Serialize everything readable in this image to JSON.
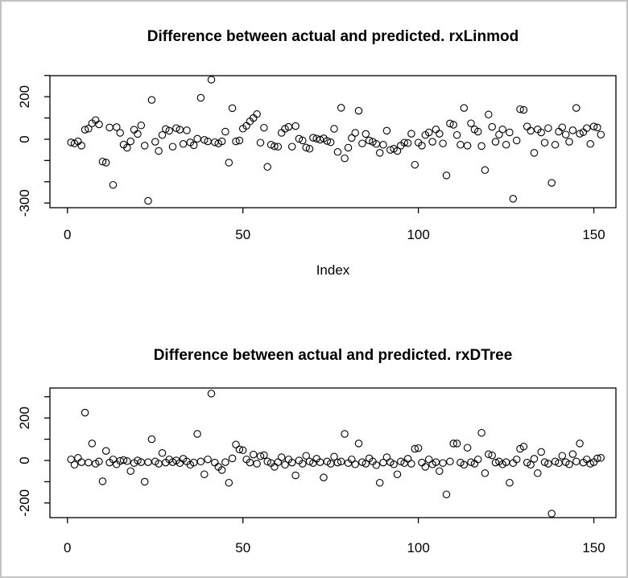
{
  "window": {
    "background_color": "#ffffff",
    "frame_border_color": "#c3c3c3",
    "axis_color": "#000000",
    "point_stroke_color": "#000000"
  },
  "chart_data": [
    {
      "type": "scatter",
      "title": "Difference between actual and predicted. rxLinmod",
      "xlabel": "Index",
      "ylabel": "",
      "marker": "open-circle",
      "grid": false,
      "legend": null,
      "xlim": [
        -5,
        156.3
      ],
      "ylim": [
        -322,
        299
      ],
      "x_ticks": [
        0,
        50,
        100,
        150
      ],
      "x_tick_labels": [
        "0",
        "50",
        "100",
        "150"
      ],
      "y_ticks": [
        300,
        200,
        100,
        0,
        -100,
        -200,
        -300
      ],
      "y_tick_labels_shown": [
        "200",
        "0",
        "-300"
      ],
      "x_start": 1,
      "x_step": 1,
      "y_values": [
        -15,
        -20,
        -10,
        -30,
        45,
        50,
        75,
        90,
        70,
        -105,
        -110,
        55,
        -215,
        57,
        30,
        -25,
        -40,
        -10,
        45,
        25,
        65,
        -30,
        -290,
        185,
        -12,
        -55,
        20,
        48,
        40,
        -35,
        52,
        45,
        -22,
        42,
        -15,
        -28,
        2,
        195,
        -3,
        -10,
        280,
        -14,
        -20,
        -10,
        36,
        -110,
        146,
        -10,
        -6,
        50,
        63,
        84,
        100,
        118,
        -16,
        54,
        -130,
        -26,
        -33,
        -35,
        30,
        49,
        58,
        -35,
        62,
        2,
        -6,
        -39,
        -45,
        7,
        3,
        -2,
        4,
        -8,
        -14,
        49,
        -60,
        148,
        -90,
        -40,
        6,
        30,
        134,
        -20,
        25,
        -6,
        -12,
        -22,
        -64,
        -26,
        40,
        -50,
        -45,
        -55,
        -30,
        -16,
        -18,
        26,
        -120,
        -16,
        -30,
        20,
        32,
        -12,
        46,
        26,
        -20,
        -170,
        74,
        68,
        20,
        -26,
        147,
        -30,
        75,
        46,
        36,
        -32,
        -145,
        116,
        58,
        -12,
        22,
        46,
        -26,
        32,
        -280,
        -6,
        141,
        138,
        60,
        40,
        -64,
        46,
        32,
        -16,
        52,
        -205,
        -26,
        36,
        56,
        22,
        -12,
        42,
        147,
        26,
        33,
        52,
        -22,
        60,
        55,
        22
      ]
    },
    {
      "type": "scatter",
      "title": "Difference between actual and predicted. rxDTree",
      "xlabel": "",
      "ylabel": "",
      "marker": "open-circle",
      "grid": false,
      "legend": null,
      "xlim": [
        -5,
        156.3
      ],
      "ylim": [
        -269,
        341
      ],
      "x_ticks": [
        0,
        50,
        100,
        150
      ],
      "x_tick_labels": [
        "0",
        "50",
        "100",
        "150"
      ],
      "y_ticks": [
        300,
        200,
        100,
        0,
        -100,
        -200
      ],
      "y_tick_labels_shown": [
        "200",
        "0",
        "-200"
      ],
      "x_start": 1,
      "x_step": 1,
      "y_values": [
        5,
        -20,
        12,
        -8,
        225,
        -10,
        80,
        -15,
        -5,
        -98,
        45,
        -10,
        5,
        -18,
        -2,
        2,
        -3,
        -50,
        -12,
        0,
        -8,
        -100,
        -8,
        100,
        -5,
        -15,
        35,
        -10,
        5,
        -8,
        0,
        -12,
        8,
        -5,
        -20,
        -10,
        125,
        -5,
        -65,
        5,
        315,
        -10,
        -30,
        -45,
        -8,
        -105,
        10,
        75,
        52,
        48,
        5,
        -10,
        28,
        -15,
        20,
        25,
        -5,
        -12,
        -30,
        -8,
        15,
        -20,
        5,
        -10,
        -70,
        0,
        -15,
        22,
        -5,
        -12,
        8,
        -8,
        -80,
        -5,
        -15,
        18,
        -10,
        -5,
        125,
        -12,
        5,
        -18,
        80,
        -8,
        -15,
        10,
        -5,
        -22,
        -105,
        -10,
        15,
        -8,
        -18,
        -65,
        -5,
        -12,
        8,
        -15,
        55,
        58,
        -10,
        -30,
        5,
        -18,
        -8,
        -50,
        -12,
        -160,
        -5,
        80,
        80,
        -10,
        -20,
        60,
        -8,
        -15,
        5,
        130,
        -60,
        29,
        24,
        -10,
        -5,
        -18,
        -8,
        -105,
        -12,
        5,
        55,
        65,
        -10,
        -20,
        8,
        -60,
        40,
        -8,
        -15,
        -250,
        -5,
        -12,
        22,
        -8,
        -18,
        30,
        -5,
        80,
        -10,
        5,
        -15,
        -8,
        10,
        12
      ]
    }
  ]
}
